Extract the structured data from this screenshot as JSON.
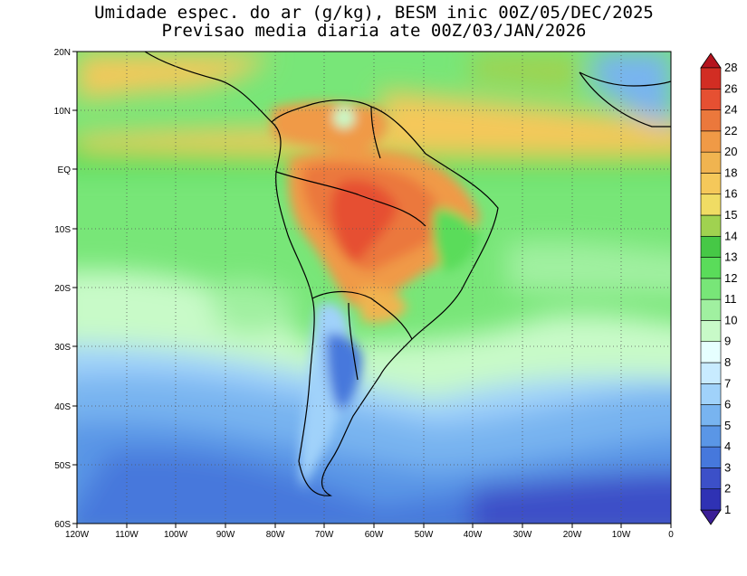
{
  "title": {
    "line1": "Umidade espec. do ar (g/kg), BESM inic 00Z/05/DEC/2025",
    "line2": "Previsao media diaria ate 00Z/03/JAN/2026"
  },
  "map": {
    "lon_range": [
      -120,
      0
    ],
    "lat_range": [
      -60,
      20
    ],
    "lat_ticks": [
      "20N",
      "10N",
      "EQ",
      "10S",
      "20S",
      "30S",
      "40S",
      "50S",
      "60S"
    ],
    "lon_ticks": [
      "120W",
      "110W",
      "100W",
      "90W",
      "80W",
      "70W",
      "60W",
      "50W",
      "40W",
      "30W",
      "20W",
      "10W",
      "0"
    ],
    "grid": "dotted"
  },
  "colorbar": {
    "levels": [
      "1",
      "2",
      "3",
      "4",
      "5",
      "6",
      "7",
      "8",
      "9",
      "10",
      "11",
      "12",
      "13",
      "14",
      "15",
      "16",
      "18",
      "20",
      "22",
      "24",
      "26",
      "28"
    ],
    "colors": [
      "#3b1e96",
      "#2f32b4",
      "#3c50c8",
      "#4678dc",
      "#5a96e6",
      "#78b4f0",
      "#a0d2fa",
      "#c8ebff",
      "#e6ffff",
      "#c8fac8",
      "#a0f0a0",
      "#78e678",
      "#5adc5a",
      "#46c846",
      "#a0d250",
      "#f0dc64",
      "#f5c85a",
      "#f0b450",
      "#f09a46",
      "#eb783c",
      "#e65032",
      "#d22d23",
      "#b4141e"
    ],
    "extends": "both"
  }
}
